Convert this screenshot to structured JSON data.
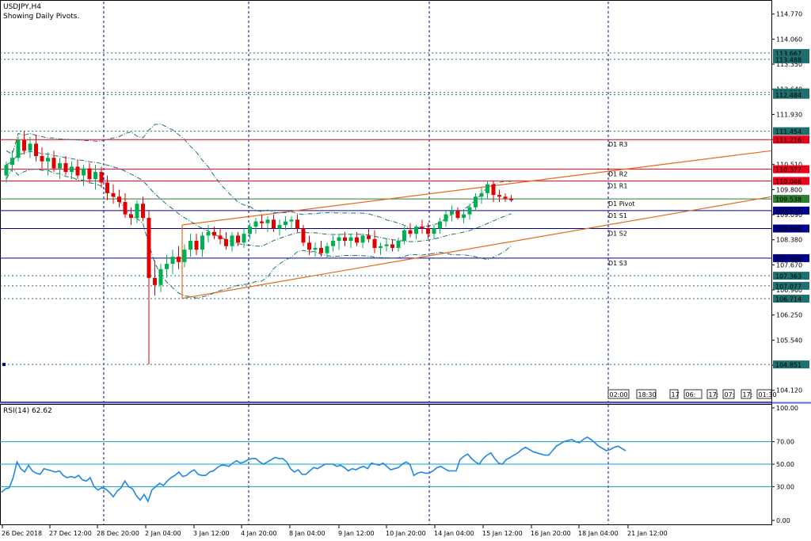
{
  "header": {
    "symbol": "USDJPY,H4",
    "indicator_note": "Showing Daily Pivots."
  },
  "rsi_header": "RSI(14) 62.62",
  "colors": {
    "bull": "#00b050",
    "bear": "#e00000",
    "pivot_red": "#e8001c",
    "pivot_blue": "#00008b",
    "pivot_green": "#2e7d32",
    "dashed_level": "#1f6f6f",
    "grid_vertical": "#00008b",
    "trend": "#e86a1a",
    "bollinger": "#1f6f6f",
    "rsi_line": "#1e88e5",
    "rsi_levels": "#0aa0c8"
  },
  "chart_data": [
    {
      "type": "candlestick",
      "symbol": "USDJPY",
      "timeframe": "H4",
      "ylim": [
        103.8,
        115.1
      ],
      "y_ticks": [
        "114.770",
        "114.060",
        "113.350",
        "112.640",
        "111.930",
        "111.220",
        "110.510",
        "109.800",
        "109.090",
        "108.380",
        "107.670",
        "106.960",
        "106.250",
        "105.540",
        "104.830",
        "104.120"
      ],
      "x_labels": [
        "26 Dec 2018",
        "27 Dec 12:00",
        "28 Dec 20:00",
        "2 Jan 04:00",
        "3 Jan 12:00",
        "4 Jan 20:00",
        "8 Jan 04:00",
        "9 Jan 12:00",
        "10 Jan 20:00",
        "14 Jan 04:00",
        "15 Jan 12:00",
        "16 Jan 20:00",
        "18 Jan 04:00",
        "21 Jan 12:00"
      ],
      "day_separators_x_index": [
        16,
        38,
        60,
        82,
        104
      ],
      "levels_solid": [
        {
          "name": "D1 R3",
          "value": 111.216,
          "color": "#e8001c"
        },
        {
          "name": "D1 R2",
          "value": 110.377,
          "color": "#e8001c"
        },
        {
          "name": "D1 R1",
          "value": 110.046,
          "color": "#e8001c"
        },
        {
          "name": "D1 Pivot",
          "value": 109.538,
          "color": "#2e7d32"
        },
        {
          "name": "D1 S1",
          "value": 109.207,
          "color": "#00008b"
        },
        {
          "name": "D1 S2",
          "value": 108.699,
          "color": "#00008b"
        },
        {
          "name": "D1 S3",
          "value": 107.86,
          "color": "#00008b"
        }
      ],
      "levels_dashed": [
        113.667,
        113.488,
        112.551,
        112.484,
        111.454,
        107.363,
        107.077,
        106.714,
        104.851
      ],
      "price_badges": [
        {
          "value": "113.667",
          "color": "#1f6f6f"
        },
        {
          "value": "113.488",
          "color": "#1f6f6f"
        },
        {
          "value": "112.551",
          "color": "#1f6f6f"
        },
        {
          "value": "112.484",
          "color": "#1f6f6f"
        },
        {
          "value": "111.454",
          "color": "#1f6f6f"
        },
        {
          "value": "111.216",
          "color": "#e8001c"
        },
        {
          "value": "110.377",
          "color": "#e8001c"
        },
        {
          "value": "110.046",
          "color": "#e8001c"
        },
        {
          "value": "109.538",
          "color": "#2e7d32"
        },
        {
          "value": "109.207",
          "color": "#00008b"
        },
        {
          "value": "108.699",
          "color": "#00008b"
        },
        {
          "value": "107.860",
          "color": "#00008b"
        },
        {
          "value": "107.363",
          "color": "#1f6f6f"
        },
        {
          "value": "107.077",
          "color": "#1f6f6f"
        },
        {
          "value": "106.714",
          "color": "#1f6f6f"
        },
        {
          "value": "104.851",
          "color": "#1f6f6f"
        }
      ],
      "time_boxes": [
        "02:00",
        "18:30",
        "17",
        "06:",
        "17:",
        "07:",
        "17:",
        "01:30"
      ],
      "candles": [
        [
          110.2,
          110.6,
          110.0,
          110.5
        ],
        [
          110.5,
          110.9,
          110.3,
          110.7
        ],
        [
          110.7,
          111.3,
          110.6,
          111.2
        ],
        [
          111.2,
          111.45,
          110.8,
          110.9
        ],
        [
          110.9,
          111.3,
          110.7,
          111.1
        ],
        [
          111.1,
          111.35,
          110.6,
          110.75
        ],
        [
          110.75,
          111.0,
          110.4,
          110.6
        ],
        [
          110.6,
          110.85,
          110.2,
          110.7
        ],
        [
          110.7,
          110.9,
          110.3,
          110.4
        ],
        [
          110.4,
          110.7,
          110.1,
          110.55
        ],
        [
          110.55,
          110.75,
          110.2,
          110.3
        ],
        [
          110.3,
          110.6,
          110.1,
          110.45
        ],
        [
          110.45,
          110.65,
          110.1,
          110.2
        ],
        [
          110.2,
          110.5,
          109.9,
          110.4
        ],
        [
          110.4,
          110.55,
          110.0,
          110.1
        ],
        [
          110.1,
          110.5,
          109.8,
          110.3
        ],
        [
          110.3,
          110.45,
          109.85,
          110.0
        ],
        [
          110.0,
          110.2,
          109.5,
          109.7
        ],
        [
          109.7,
          109.95,
          109.4,
          109.6
        ],
        [
          109.6,
          109.8,
          109.3,
          109.45
        ],
        [
          109.45,
          109.7,
          109.0,
          109.1
        ],
        [
          109.1,
          109.3,
          108.8,
          109.0
        ],
        [
          109.0,
          109.5,
          108.85,
          109.4
        ],
        [
          109.4,
          109.6,
          108.9,
          109.0
        ],
        [
          109.0,
          109.2,
          104.85,
          107.3
        ],
        [
          107.3,
          107.8,
          106.8,
          107.1
        ],
        [
          107.1,
          107.7,
          106.9,
          107.55
        ],
        [
          107.55,
          107.95,
          107.3,
          107.7
        ],
        [
          107.7,
          108.1,
          107.4,
          107.9
        ],
        [
          107.9,
          108.2,
          107.55,
          107.75
        ],
        [
          107.75,
          108.25,
          107.6,
          108.1
        ],
        [
          108.1,
          108.55,
          107.9,
          108.35
        ],
        [
          108.35,
          108.55,
          107.95,
          108.1
        ],
        [
          108.1,
          108.6,
          107.9,
          108.5
        ],
        [
          108.5,
          108.8,
          108.3,
          108.6
        ],
        [
          108.6,
          108.75,
          108.4,
          108.5
        ],
        [
          108.5,
          108.7,
          108.25,
          108.4
        ],
        [
          108.4,
          108.6,
          108.1,
          108.2
        ],
        [
          108.2,
          108.6,
          108.05,
          108.5
        ],
        [
          108.5,
          108.6,
          108.2,
          108.3
        ],
        [
          108.3,
          108.7,
          108.15,
          108.55
        ],
        [
          108.55,
          108.85,
          108.4,
          108.75
        ],
        [
          108.75,
          109.0,
          108.55,
          108.9
        ],
        [
          108.9,
          109.1,
          108.7,
          108.85
        ],
        [
          108.85,
          109.05,
          108.6,
          108.95
        ],
        [
          108.95,
          109.1,
          108.6,
          108.7
        ],
        [
          108.7,
          108.95,
          108.5,
          108.8
        ],
        [
          108.8,
          109.05,
          108.65,
          108.9
        ],
        [
          108.9,
          109.05,
          108.7,
          108.95
        ],
        [
          108.95,
          109.1,
          108.6,
          108.7
        ],
        [
          108.7,
          108.8,
          108.2,
          108.3
        ],
        [
          108.3,
          108.5,
          107.95,
          108.1
        ],
        [
          108.1,
          108.3,
          107.9,
          108.15
        ],
        [
          108.15,
          108.35,
          107.9,
          108.0
        ],
        [
          108.0,
          108.3,
          107.85,
          108.2
        ],
        [
          108.2,
          108.5,
          108.05,
          108.35
        ],
        [
          108.35,
          108.55,
          108.1,
          108.45
        ],
        [
          108.45,
          108.6,
          108.2,
          108.35
        ],
        [
          108.35,
          108.55,
          108.15,
          108.45
        ],
        [
          108.45,
          108.6,
          108.2,
          108.3
        ],
        [
          108.3,
          108.55,
          108.15,
          108.5
        ],
        [
          108.5,
          108.7,
          108.3,
          108.4
        ],
        [
          108.4,
          108.65,
          108.0,
          108.15
        ],
        [
          108.15,
          108.3,
          107.95,
          108.2
        ],
        [
          108.2,
          108.4,
          108.05,
          108.25
        ],
        [
          108.25,
          108.4,
          108.05,
          108.15
        ],
        [
          108.15,
          108.45,
          108.05,
          108.35
        ],
        [
          108.35,
          108.75,
          108.25,
          108.65
        ],
        [
          108.65,
          108.85,
          108.45,
          108.55
        ],
        [
          108.55,
          108.8,
          108.4,
          108.75
        ],
        [
          108.75,
          108.95,
          108.55,
          108.7
        ],
        [
          108.7,
          108.85,
          108.4,
          108.55
        ],
        [
          108.55,
          108.8,
          108.4,
          108.7
        ],
        [
          108.7,
          109.0,
          108.55,
          108.9
        ],
        [
          108.9,
          109.2,
          108.75,
          109.1
        ],
        [
          109.1,
          109.35,
          108.9,
          109.2
        ],
        [
          109.2,
          109.3,
          108.95,
          109.0
        ],
        [
          109.0,
          109.2,
          108.85,
          109.1
        ],
        [
          109.1,
          109.4,
          108.95,
          109.3
        ],
        [
          109.3,
          109.7,
          109.2,
          109.6
        ],
        [
          109.6,
          109.85,
          109.4,
          109.7
        ],
        [
          109.7,
          110.05,
          109.55,
          109.95
        ],
        [
          109.95,
          110.05,
          109.45,
          109.65
        ],
        [
          109.65,
          109.8,
          109.45,
          109.6
        ],
        [
          109.6,
          109.7,
          109.45,
          109.55
        ],
        [
          109.55,
          109.65,
          109.45,
          109.5
        ]
      ]
    },
    {
      "type": "line",
      "title": "RSI(14) 62.62",
      "ylim": [
        0,
        100
      ],
      "y_ticks": [
        "100.00",
        "70.00",
        "50.00",
        "30.00",
        "0.00"
      ],
      "levels": [
        70,
        50,
        30
      ],
      "values": [
        25,
        28,
        29,
        38,
        52,
        46,
        43,
        49,
        44,
        42,
        41,
        46,
        45,
        44,
        43,
        44,
        40,
        38,
        39,
        38,
        40,
        36,
        35,
        38,
        30,
        27,
        29,
        28,
        25,
        21,
        26,
        29,
        35,
        30,
        28,
        22,
        18,
        23,
        17,
        27,
        30,
        33,
        31,
        35,
        38,
        40,
        43,
        39,
        40,
        43,
        45,
        41,
        40,
        40,
        43,
        44,
        47,
        49,
        49,
        48,
        51,
        53,
        51,
        52,
        54,
        55,
        55,
        52,
        50,
        52,
        54,
        56,
        55,
        55,
        52,
        46,
        43,
        45,
        41,
        41,
        44,
        47,
        46,
        48,
        50,
        50,
        50,
        48,
        49,
        47,
        44,
        46,
        45,
        47,
        48,
        46,
        51,
        50,
        49,
        51,
        48,
        45,
        46,
        47,
        50,
        52,
        50,
        40,
        42,
        43,
        42,
        42,
        44,
        47,
        48,
        46,
        44,
        44,
        44,
        54,
        57,
        59,
        55,
        52,
        50,
        55,
        58,
        60,
        55,
        51,
        50,
        54,
        56,
        58,
        60,
        63,
        65,
        63,
        61,
        60,
        59,
        58,
        58,
        62,
        66,
        68,
        70,
        71,
        72,
        70,
        69,
        72,
        74,
        72,
        69,
        66,
        64,
        62,
        63,
        65,
        66,
        64,
        62
      ]
    }
  ]
}
